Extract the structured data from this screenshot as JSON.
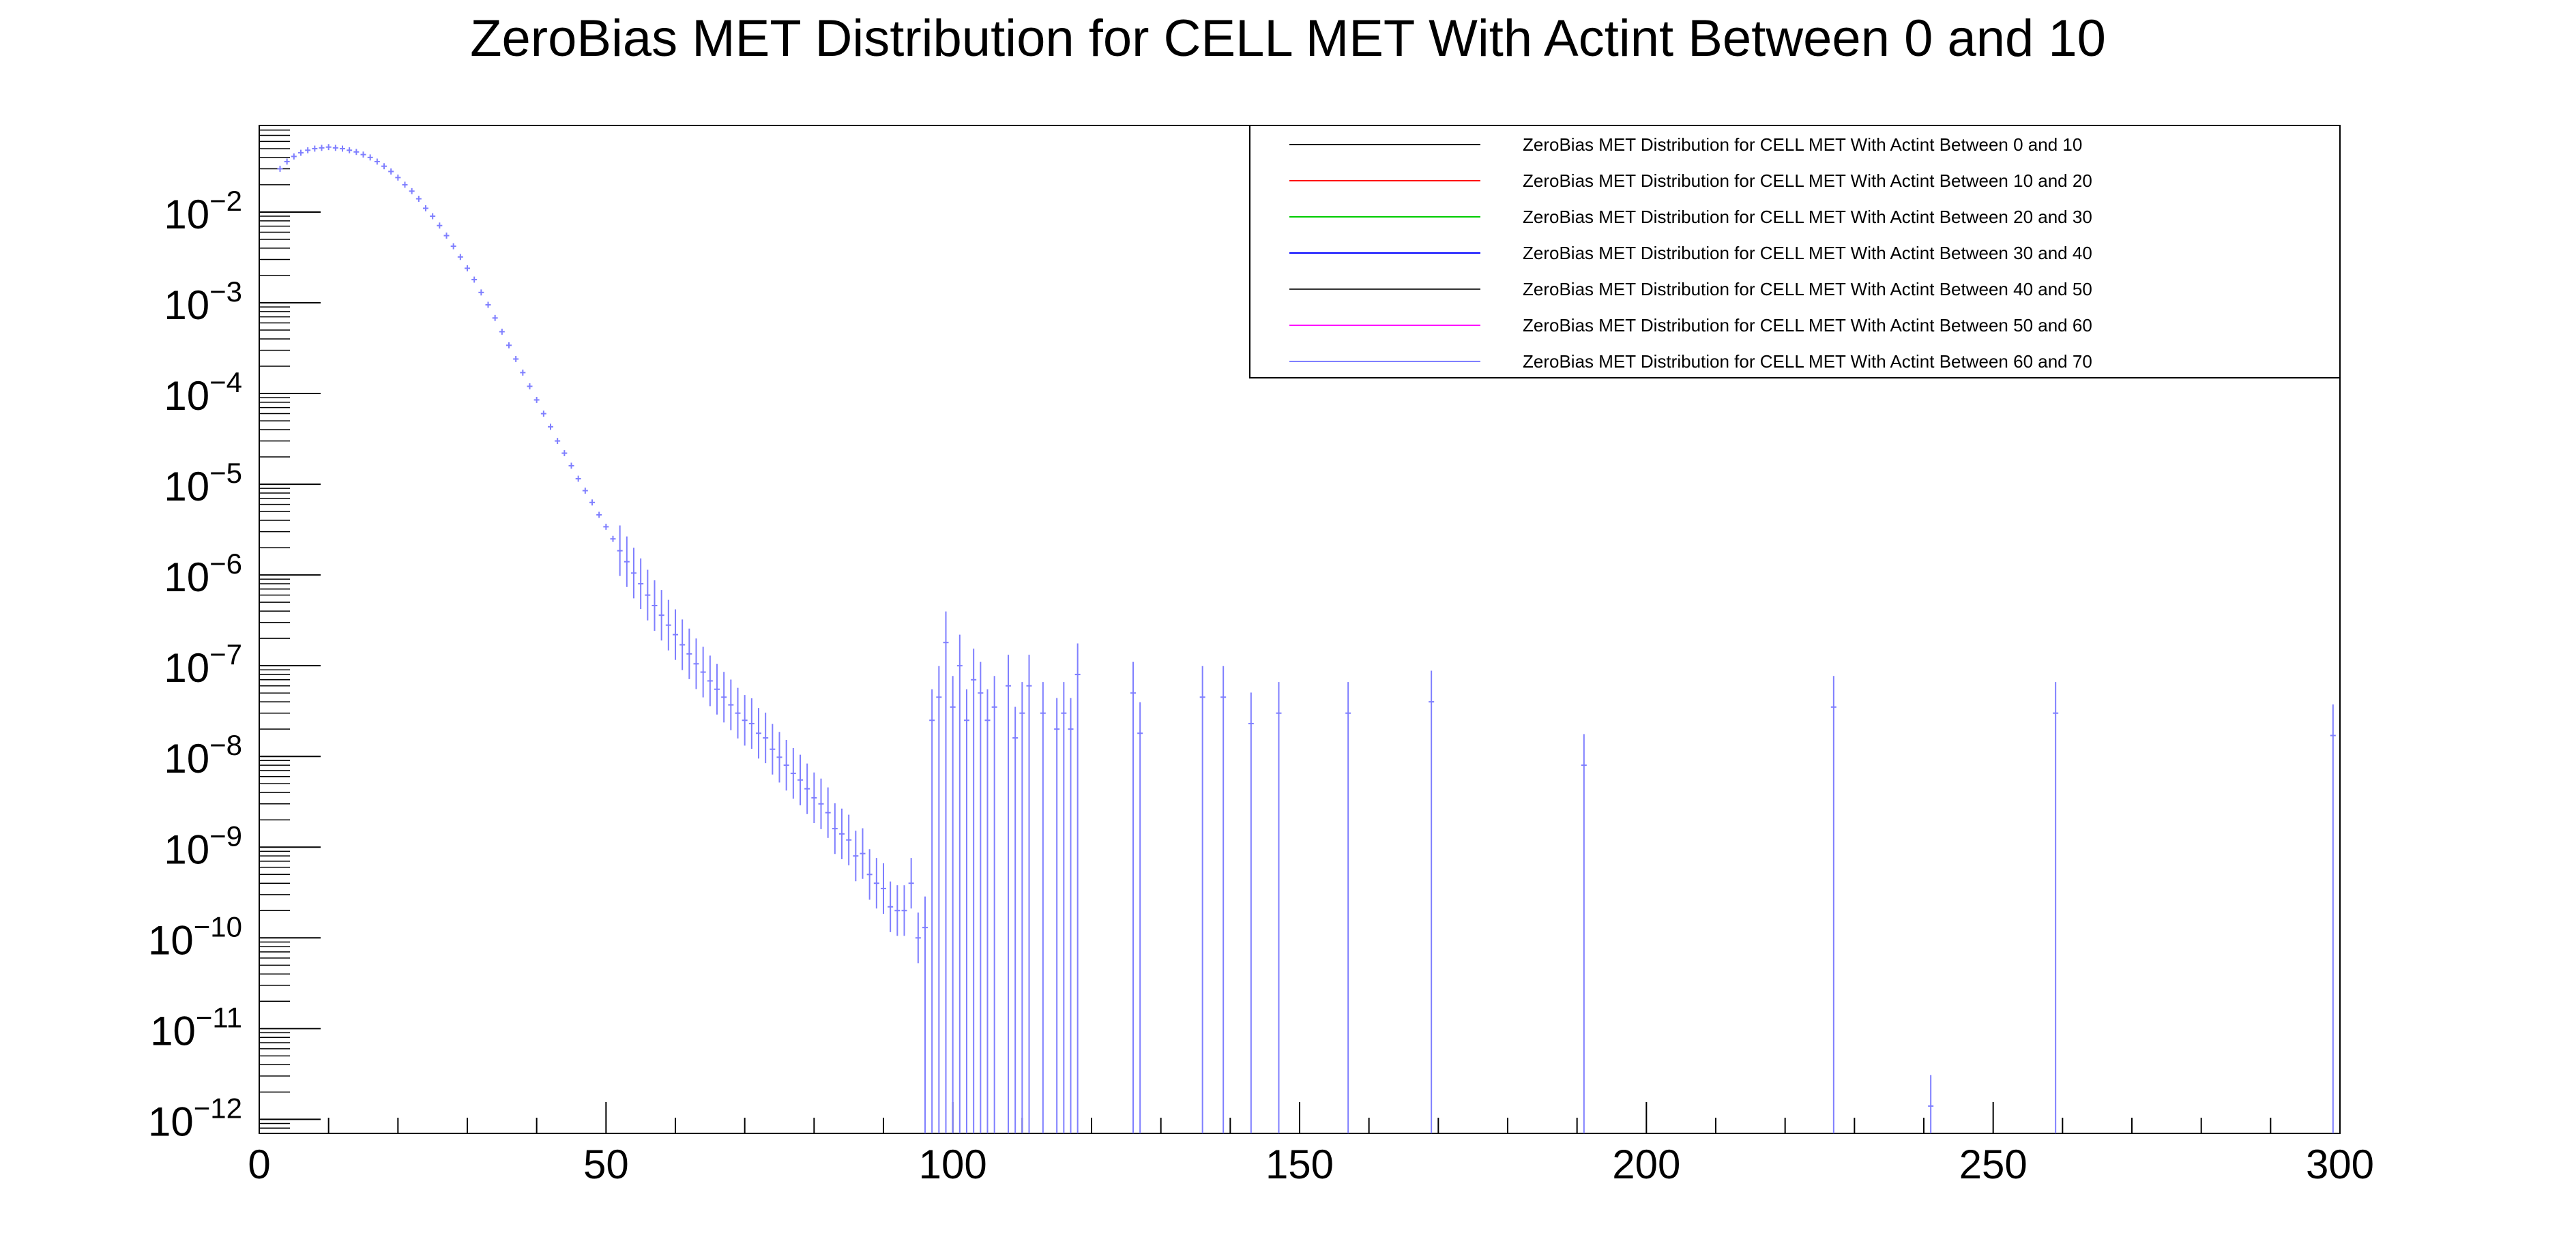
{
  "chart_data": {
    "type": "scatter",
    "title": "ZeroBias MET Distribution for CELL MET With Actint Between 0 and 10",
    "xlabel": "",
    "ylabel": "",
    "xlim": [
      0,
      300
    ],
    "ylim": [
      7e-13,
      0.09
    ],
    "y_scale": "log",
    "grid": false,
    "legend_position": "top-right",
    "x_ticks": [
      0,
      50,
      100,
      150,
      200,
      250,
      300
    ],
    "y_ticks": [
      {
        "mantissa": "10",
        "exp": "−12",
        "value": 1e-12
      },
      {
        "mantissa": "10",
        "exp": "−11",
        "value": 1e-11
      },
      {
        "mantissa": "10",
        "exp": "−10",
        "value": 1e-10
      },
      {
        "mantissa": "10",
        "exp": "−9",
        "value": 1e-09
      },
      {
        "mantissa": "10",
        "exp": "−8",
        "value": 1e-08
      },
      {
        "mantissa": "10",
        "exp": "−7",
        "value": 1e-07
      },
      {
        "mantissa": "10",
        "exp": "−6",
        "value": 1e-06
      },
      {
        "mantissa": "10",
        "exp": "−5",
        "value": 1e-05
      },
      {
        "mantissa": "10",
        "exp": "−4",
        "value": 0.0001
      },
      {
        "mantissa": "10",
        "exp": "−3",
        "value": 0.001
      },
      {
        "mantissa": "10",
        "exp": "−2",
        "value": 0.01
      }
    ],
    "legend": [
      {
        "label": "ZeroBias MET Distribution for CELL MET With Actint Between 0 and 10",
        "color": "#000000"
      },
      {
        "label": "ZeroBias MET Distribution for CELL MET With Actint Between 10 and 20",
        "color": "#ff0000"
      },
      {
        "label": "ZeroBias MET Distribution for CELL MET With Actint Between 20 and 30",
        "color": "#00cc00"
      },
      {
        "label": "ZeroBias MET Distribution for CELL MET With Actint Between 30 and 40",
        "color": "#0000ff"
      },
      {
        "label": "ZeroBias MET Distribution for CELL MET With Actint Between 40 and 50",
        "color": "#333333"
      },
      {
        "label": "ZeroBias MET Distribution for CELL MET With Actint Between 50 and 60",
        "color": "#ff00ff"
      },
      {
        "label": "ZeroBias MET Distribution for CELL MET With Actint Between 60 and 70",
        "color": "#7f7fff"
      }
    ],
    "series": [
      {
        "color": "#7f7fff",
        "points": [
          {
            "x": 3,
            "y": 0.03
          },
          {
            "x": 4,
            "y": 0.036
          },
          {
            "x": 5,
            "y": 0.041
          },
          {
            "x": 6,
            "y": 0.045
          },
          {
            "x": 7,
            "y": 0.048
          },
          {
            "x": 8,
            "y": 0.05
          },
          {
            "x": 9,
            "y": 0.051
          },
          {
            "x": 10,
            "y": 0.052
          },
          {
            "x": 11,
            "y": 0.051
          },
          {
            "x": 12,
            "y": 0.05
          },
          {
            "x": 13,
            "y": 0.048
          },
          {
            "x": 14,
            "y": 0.046
          },
          {
            "x": 15,
            "y": 0.043
          },
          {
            "x": 16,
            "y": 0.04
          },
          {
            "x": 17,
            "y": 0.036
          },
          {
            "x": 18,
            "y": 0.032
          },
          {
            "x": 19,
            "y": 0.028
          },
          {
            "x": 20,
            "y": 0.024
          },
          {
            "x": 21,
            "y": 0.02
          },
          {
            "x": 22,
            "y": 0.017
          },
          {
            "x": 23,
            "y": 0.014
          },
          {
            "x": 24,
            "y": 0.011
          },
          {
            "x": 25,
            "y": 0.009
          },
          {
            "x": 26,
            "y": 0.0071
          },
          {
            "x": 27,
            "y": 0.0055
          },
          {
            "x": 28,
            "y": 0.0042
          },
          {
            "x": 29,
            "y": 0.0032
          },
          {
            "x": 30,
            "y": 0.0024
          },
          {
            "x": 31,
            "y": 0.0018
          },
          {
            "x": 32,
            "y": 0.0013
          },
          {
            "x": 33,
            "y": 0.00095
          },
          {
            "x": 34,
            "y": 0.00068
          },
          {
            "x": 35,
            "y": 0.00048
          },
          {
            "x": 36,
            "y": 0.00034
          },
          {
            "x": 37,
            "y": 0.00024
          },
          {
            "x": 38,
            "y": 0.00017
          },
          {
            "x": 39,
            "y": 0.00012
          },
          {
            "x": 40,
            "y": 8.5e-05
          },
          {
            "x": 41,
            "y": 6e-05
          },
          {
            "x": 42,
            "y": 4.3e-05
          },
          {
            "x": 43,
            "y": 3e-05
          },
          {
            "x": 44,
            "y": 2.2e-05
          },
          {
            "x": 45,
            "y": 1.6e-05
          },
          {
            "x": 46,
            "y": 1.15e-05
          },
          {
            "x": 47,
            "y": 8.5e-06
          },
          {
            "x": 48,
            "y": 6.3e-06
          },
          {
            "x": 49,
            "y": 4.6e-06
          },
          {
            "x": 50,
            "y": 3.4e-06
          },
          {
            "x": 51,
            "y": 2.5e-06
          },
          {
            "x": 52,
            "y": 1.85e-06
          },
          {
            "x": 53,
            "y": 1.4e-06
          },
          {
            "x": 54,
            "y": 1.05e-06
          },
          {
            "x": 55,
            "y": 8e-07
          },
          {
            "x": 56,
            "y": 6e-07
          },
          {
            "x": 57,
            "y": 4.6e-07
          },
          {
            "x": 58,
            "y": 3.6e-07
          },
          {
            "x": 59,
            "y": 2.8e-07
          },
          {
            "x": 60,
            "y": 2.2e-07
          },
          {
            "x": 61,
            "y": 1.7e-07
          },
          {
            "x": 62,
            "y": 1.35e-07
          },
          {
            "x": 63,
            "y": 1.05e-07
          },
          {
            "x": 64,
            "y": 8.5e-08
          },
          {
            "x": 65,
            "y": 6.8e-08
          },
          {
            "x": 66,
            "y": 5.5e-08
          },
          {
            "x": 67,
            "y": 4.5e-08
          },
          {
            "x": 68,
            "y": 3.7e-08
          },
          {
            "x": 69,
            "y": 3e-08
          },
          {
            "x": 70,
            "y": 2.5e-08
          },
          {
            "x": 71,
            "y": 2.3e-08
          },
          {
            "x": 72,
            "y": 1.8e-08
          },
          {
            "x": 73,
            "y": 1.6e-08
          },
          {
            "x": 74,
            "y": 1.2e-08
          },
          {
            "x": 75,
            "y": 9.8e-09
          },
          {
            "x": 76,
            "y": 8e-09
          },
          {
            "x": 77,
            "y": 6.5e-09
          },
          {
            "x": 78,
            "y": 5.5e-09
          },
          {
            "x": 79,
            "y": 4.4e-09
          },
          {
            "x": 80,
            "y": 3.5e-09
          },
          {
            "x": 81,
            "y": 3e-09
          },
          {
            "x": 82,
            "y": 2.4e-09
          },
          {
            "x": 83,
            "y": 1.6e-09
          },
          {
            "x": 84,
            "y": 1.4e-09
          },
          {
            "x": 85,
            "y": 1.2e-09
          },
          {
            "x": 86,
            "y": 8e-10
          },
          {
            "x": 87,
            "y": 8.5e-10
          },
          {
            "x": 88,
            "y": 5e-10
          },
          {
            "x": 89,
            "y": 4e-10
          },
          {
            "x": 90,
            "y": 3.5e-10
          },
          {
            "x": 91,
            "y": 2.2e-10
          },
          {
            "x": 92,
            "y": 2e-10
          },
          {
            "x": 93,
            "y": 2e-10
          },
          {
            "x": 94,
            "y": 4e-10
          },
          {
            "x": 95,
            "y": 1e-10
          },
          {
            "x": 96,
            "y": 1.3e-10
          },
          {
            "x": 97,
            "y": 2.5e-08
          },
          {
            "x": 98,
            "y": 4.5e-08
          },
          {
            "x": 99,
            "y": 1.8e-07
          },
          {
            "x": 100,
            "y": 3.5e-08
          },
          {
            "x": 101,
            "y": 1e-07
          },
          {
            "x": 102,
            "y": 2.5e-08
          },
          {
            "x": 103,
            "y": 7e-08
          },
          {
            "x": 104,
            "y": 5e-08
          },
          {
            "x": 105,
            "y": 2.5e-08
          },
          {
            "x": 106,
            "y": 3.5e-08
          },
          {
            "x": 108,
            "y": 6e-08
          },
          {
            "x": 109,
            "y": 1.6e-08
          },
          {
            "x": 110,
            "y": 3e-08
          },
          {
            "x": 111,
            "y": 6e-08
          },
          {
            "x": 113,
            "y": 3e-08
          },
          {
            "x": 115,
            "y": 2e-08
          },
          {
            "x": 116,
            "y": 3e-08
          },
          {
            "x": 117,
            "y": 2e-08
          },
          {
            "x": 118,
            "y": 8e-08
          },
          {
            "x": 126,
            "y": 5e-08
          },
          {
            "x": 127,
            "y": 1.8e-08
          },
          {
            "x": 136,
            "y": 4.5e-08
          },
          {
            "x": 139,
            "y": 4.5e-08
          },
          {
            "x": 143,
            "y": 2.3e-08
          },
          {
            "x": 147,
            "y": 3e-08
          },
          {
            "x": 157,
            "y": 3e-08
          },
          {
            "x": 169,
            "y": 4e-08
          },
          {
            "x": 191,
            "y": 8e-09
          },
          {
            "x": 227,
            "y": 3.5e-08
          },
          {
            "x": 241,
            "y": 1.4e-12
          },
          {
            "x": 259,
            "y": 3e-08
          },
          {
            "x": 299,
            "y": 1.7e-08
          }
        ]
      }
    ]
  }
}
